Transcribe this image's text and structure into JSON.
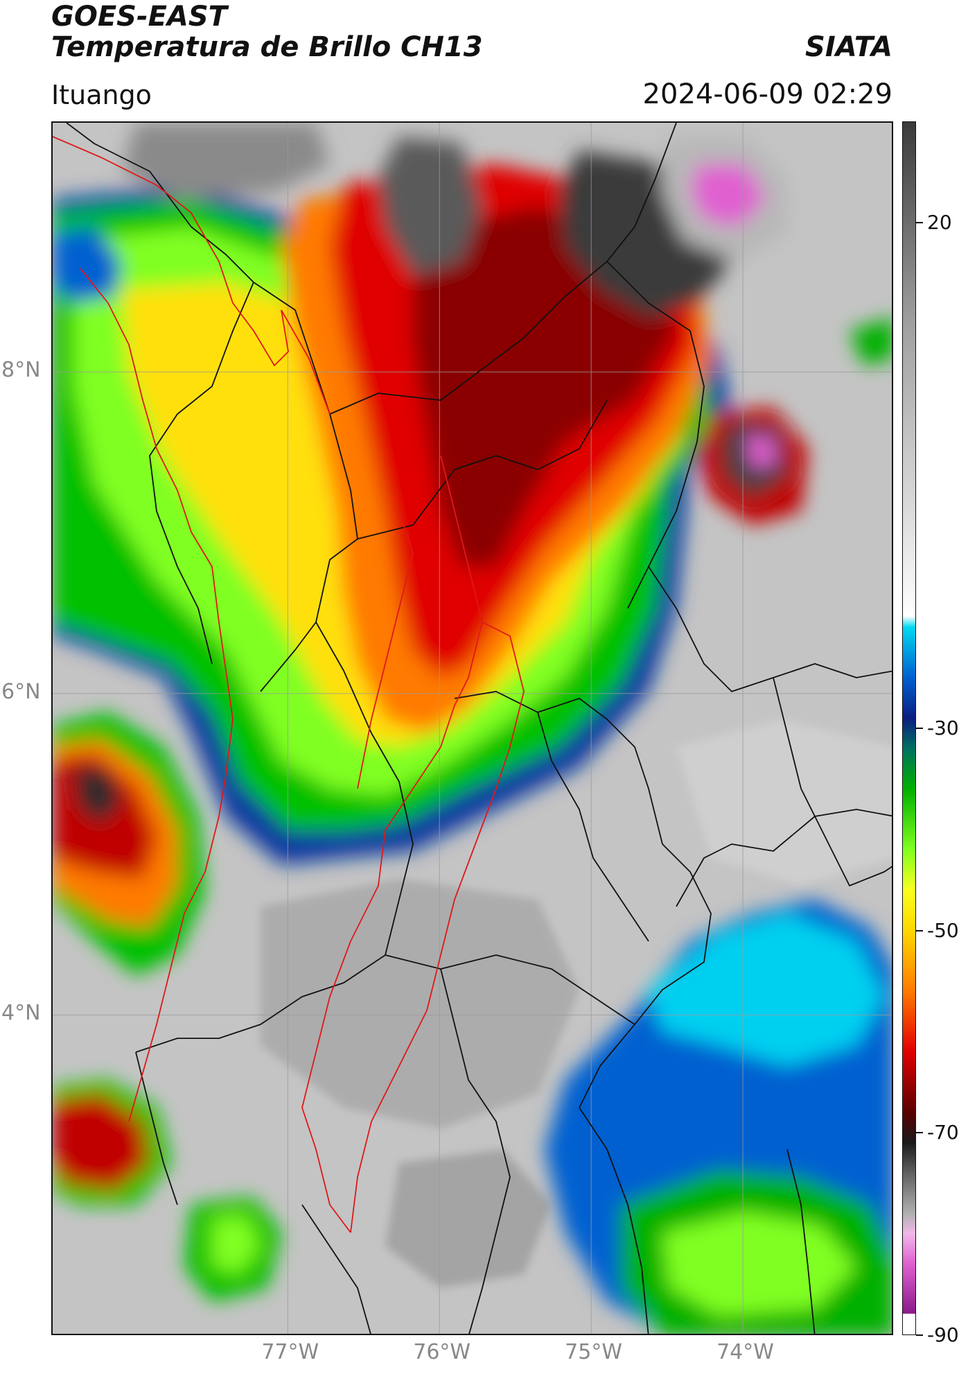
{
  "header": {
    "title_line1": "GOES-EAST",
    "title_line2": "Temperatura de Brillo CH13",
    "brand": "SIATA",
    "location": "Ituango",
    "timestamp": "2024-06-09 02:29"
  },
  "map": {
    "lon_range": [
      -78.55,
      -73.0
    ],
    "lat_range": [
      2.0,
      9.55
    ],
    "lon_ticks": [
      {
        "value": -77,
        "label": "77°W"
      },
      {
        "value": -76,
        "label": "76°W"
      },
      {
        "value": -75,
        "label": "75°W"
      },
      {
        "value": -74,
        "label": "74°W"
      }
    ],
    "lat_ticks": [
      {
        "value": 8,
        "label": "8°N"
      },
      {
        "value": 6,
        "label": "6°N"
      },
      {
        "value": 4,
        "label": "4°N"
      }
    ],
    "colors": {
      "land_background": "#c4c4c4",
      "political_border": "#111111",
      "highlight_border": "#e01818",
      "gridline": "#9a9a9a"
    }
  },
  "colorbar": {
    "range": [
      -90,
      30
    ],
    "ticks": [
      {
        "value": 20,
        "label": "20"
      },
      {
        "value": -30,
        "label": "-30"
      },
      {
        "value": -50,
        "label": "-50"
      },
      {
        "value": -70,
        "label": "-70"
      },
      {
        "value": -90,
        "label": "-90"
      }
    ],
    "stops": [
      {
        "value": -90,
        "color": "#ffffff"
      },
      {
        "value": -88,
        "color": "#ffffff"
      },
      {
        "value": -87.9,
        "color": "#8a1a8a"
      },
      {
        "value": -83,
        "color": "#e060d0"
      },
      {
        "value": -80,
        "color": "#f0b8e8"
      },
      {
        "value": -78,
        "color": "#b0b0b0"
      },
      {
        "value": -74,
        "color": "#606060"
      },
      {
        "value": -71,
        "color": "#1a1a1a"
      },
      {
        "value": -68,
        "color": "#5a0000"
      },
      {
        "value": -62,
        "color": "#e00000"
      },
      {
        "value": -56,
        "color": "#ff7a00"
      },
      {
        "value": -50,
        "color": "#ffd800"
      },
      {
        "value": -46,
        "color": "#f8ff20"
      },
      {
        "value": -42,
        "color": "#80ff20"
      },
      {
        "value": -36,
        "color": "#00b000"
      },
      {
        "value": -32,
        "color": "#007060"
      },
      {
        "value": -29,
        "color": "#0a1e80"
      },
      {
        "value": -25,
        "color": "#0060d0"
      },
      {
        "value": -20,
        "color": "#00d8f0"
      },
      {
        "value": -18.9,
        "color": "#ffffff"
      },
      {
        "value": -10,
        "color": "#e0e0e0"
      },
      {
        "value": 10,
        "color": "#a0a0a0"
      },
      {
        "value": 30,
        "color": "#3a3a3a"
      }
    ]
  }
}
